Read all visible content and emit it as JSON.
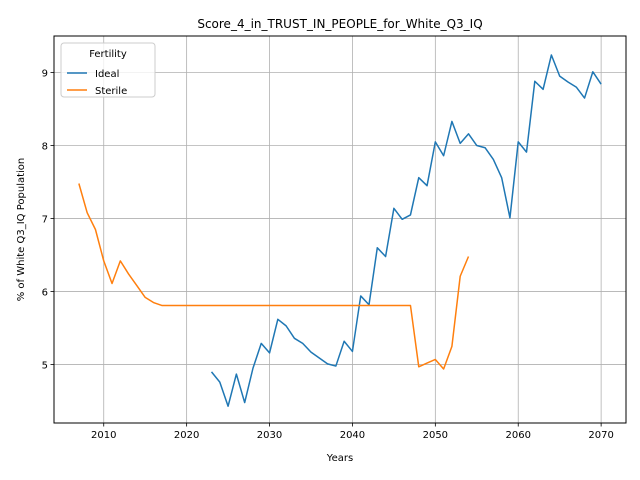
{
  "chart_data": {
    "type": "line",
    "title": "Score_4_in_TRUST_IN_PEOPLE_for_White_Q3_IQ",
    "xlabel": "Years",
    "ylabel": "% of White Q3_IQ Population",
    "xlim": [
      2004,
      2073
    ],
    "ylim": [
      4.2,
      9.5
    ],
    "xticks": [
      2010,
      2020,
      2030,
      2040,
      2050,
      2060,
      2070
    ],
    "yticks": [
      5,
      6,
      7,
      8,
      9
    ],
    "grid": true,
    "legend": {
      "title": "Fertility",
      "placement": "top-left"
    },
    "series": [
      {
        "name": "Ideal",
        "color": "#1f77b4",
        "x": [
          2023,
          2024,
          2025,
          2026,
          2027,
          2028,
          2029,
          2030,
          2031,
          2032,
          2033,
          2034,
          2035,
          2036,
          2037,
          2038,
          2039,
          2040,
          2041,
          2042,
          2043,
          2044,
          2045,
          2046,
          2047,
          2048,
          2049,
          2050,
          2051,
          2052,
          2053,
          2054,
          2055,
          2056,
          2057,
          2058,
          2059,
          2060,
          2061,
          2062,
          2063,
          2064,
          2065,
          2066,
          2067,
          2068,
          2069,
          2070
        ],
        "values": [
          4.9,
          4.76,
          4.43,
          4.87,
          4.48,
          4.95,
          5.29,
          5.16,
          5.62,
          5.53,
          5.36,
          5.29,
          5.17,
          5.09,
          5.01,
          4.98,
          5.32,
          5.18,
          5.94,
          5.82,
          6.6,
          6.48,
          7.14,
          6.99,
          7.05,
          7.56,
          7.45,
          8.05,
          7.86,
          8.33,
          8.03,
          8.16,
          8.0,
          7.97,
          7.81,
          7.56,
          7.01,
          8.05,
          7.91,
          8.88,
          8.77,
          9.24,
          8.95,
          8.87,
          8.8,
          8.65,
          9.01,
          8.84
        ]
      },
      {
        "name": "Sterile",
        "color": "#ff7f0e",
        "x": [
          2007,
          2008,
          2009,
          2010,
          2011,
          2012,
          2013,
          2014,
          2015,
          2016,
          2017,
          2018,
          2019,
          2020,
          2021,
          2022,
          2023,
          2024,
          2025,
          2026,
          2027,
          2028,
          2029,
          2030,
          2031,
          2032,
          2033,
          2034,
          2035,
          2036,
          2037,
          2038,
          2039,
          2040,
          2041,
          2042,
          2043,
          2044,
          2045,
          2046,
          2047,
          2048,
          2049,
          2050,
          2051,
          2052,
          2053,
          2054
        ],
        "values": [
          7.48,
          7.08,
          6.85,
          6.42,
          6.11,
          6.42,
          6.24,
          6.08,
          5.92,
          5.85,
          5.81,
          5.81,
          5.81,
          5.81,
          5.81,
          5.81,
          5.81,
          5.81,
          5.81,
          5.81,
          5.81,
          5.81,
          5.81,
          5.81,
          5.81,
          5.81,
          5.81,
          5.81,
          5.81,
          5.81,
          5.81,
          5.81,
          5.81,
          5.81,
          5.81,
          5.81,
          5.81,
          5.81,
          5.81,
          5.81,
          5.81,
          4.97,
          5.02,
          5.07,
          4.94,
          5.25,
          6.21,
          6.48
        ]
      }
    ]
  }
}
